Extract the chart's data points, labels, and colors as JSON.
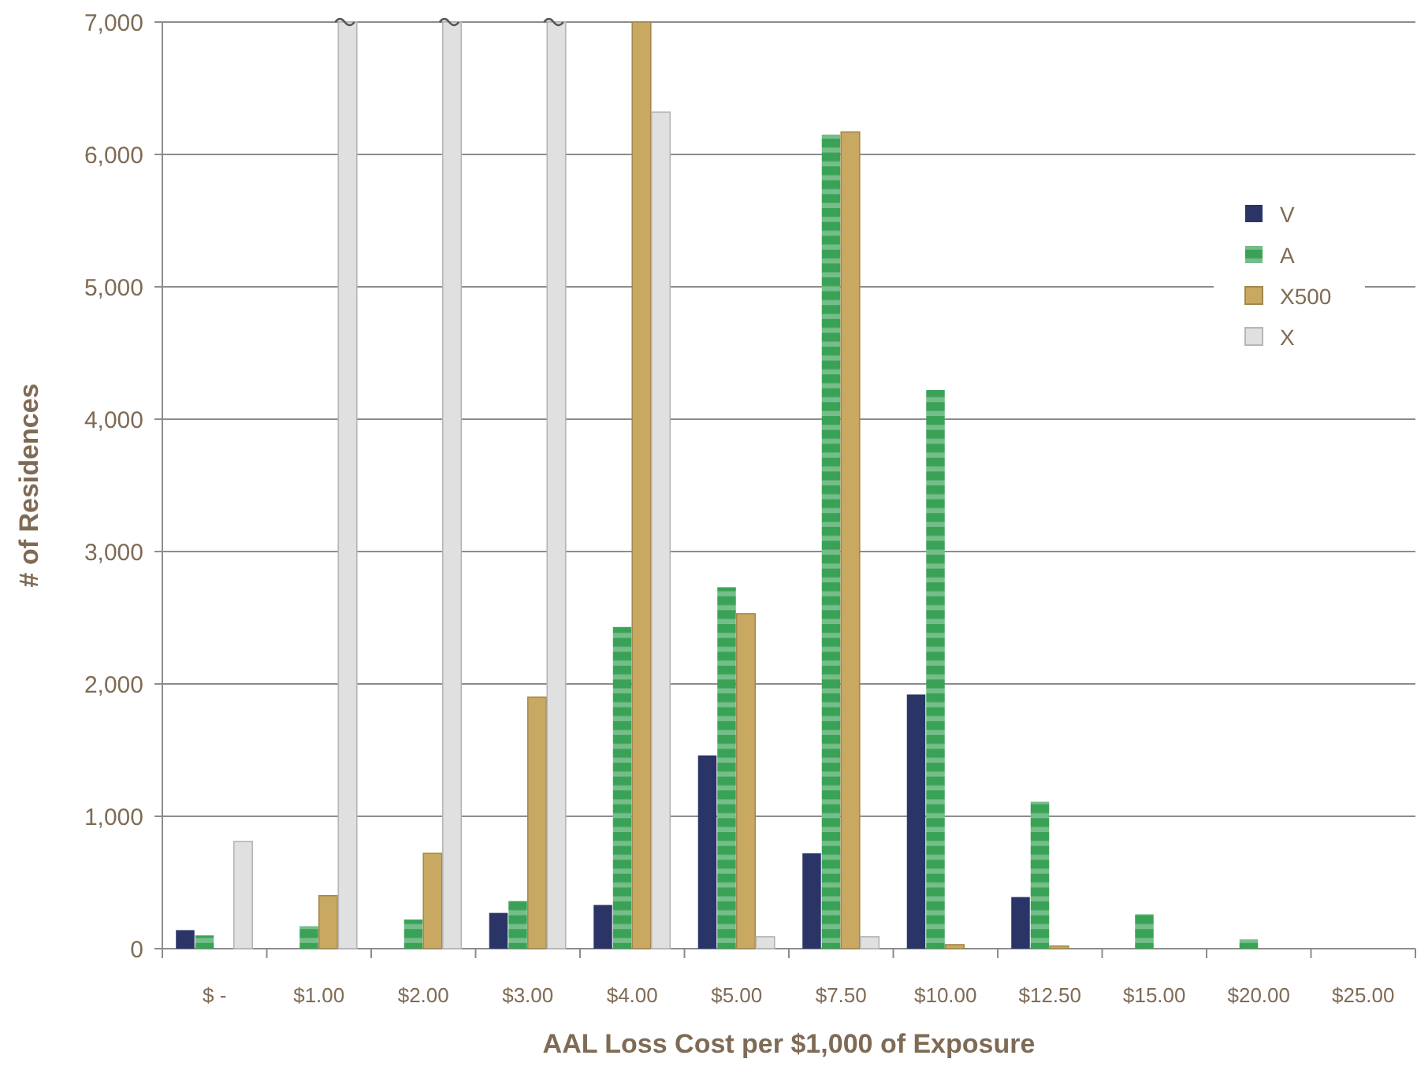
{
  "chart_data": {
    "type": "bar",
    "xlabel": "AAL Loss Cost per $1,000 of Exposure",
    "ylabel": "# of Residences",
    "categories": [
      "$ -",
      "$1.00",
      "$2.00",
      "$3.00",
      "$4.00",
      "$5.00",
      "$7.50",
      "$10.00",
      "$12.50",
      "$15.00",
      "$20.00",
      "$25.00"
    ],
    "series": [
      {
        "name": "V",
        "color": "#2b3467",
        "values": [
          140,
          0,
          0,
          270,
          330,
          1460,
          720,
          1920,
          390,
          0,
          0,
          0
        ]
      },
      {
        "name": "A",
        "color": "#3aa257",
        "values": [
          100,
          170,
          220,
          360,
          2430,
          2730,
          6150,
          4220,
          1110,
          260,
          70,
          0
        ]
      },
      {
        "name": "X500",
        "color": "#c9a862",
        "values": [
          0,
          400,
          720,
          1900,
          7000,
          2530,
          6170,
          30,
          20,
          0,
          0,
          0
        ]
      },
      {
        "name": "X",
        "color": "#e0e0e0",
        "values": [
          810,
          7000,
          7000,
          7000,
          6320,
          90,
          90,
          0,
          0,
          0,
          0,
          0
        ]
      }
    ],
    "ylim": [
      0,
      7000
    ],
    "yticks": [
      {
        "value": 0,
        "label": "0"
      },
      {
        "value": 1000,
        "label": "1,000"
      },
      {
        "value": 2000,
        "label": "2,000"
      },
      {
        "value": 3000,
        "label": "3,000"
      },
      {
        "value": 4000,
        "label": "4,000"
      },
      {
        "value": 5000,
        "label": "5,000"
      },
      {
        "value": 6000,
        "label": "6,000"
      },
      {
        "value": 7000,
        "label": "7,000"
      }
    ],
    "grid": "y",
    "legend": "top right"
  }
}
